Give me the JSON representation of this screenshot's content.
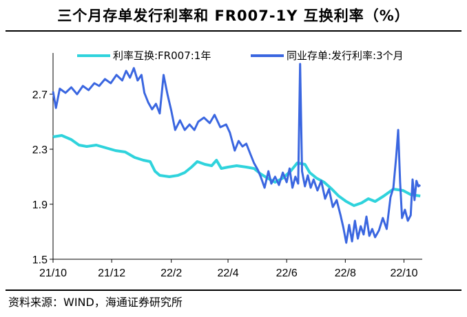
{
  "title": "三个月存单发行利率和 FR007-1Y 互换利率（%）",
  "source": "资料来源：WIND，海通证券研究所",
  "chart_data": {
    "type": "line",
    "title": "三个月存单发行利率和 FR007-1Y 互换利率（%）",
    "x_tick_labels": [
      "21/10",
      "21/12",
      "22/2",
      "22/4",
      "22/6",
      "22/8",
      "22/10"
    ],
    "y_tick_labels": [
      "1.5",
      "1.9",
      "2.3",
      "2.7"
    ],
    "ylim": [
      1.5,
      3.0
    ],
    "xlim": [
      "2021-10-01",
      "2022-10-20"
    ],
    "grid": false,
    "legend_position": "top",
    "series": [
      {
        "name": "利率互换:FR007:1年",
        "color": "#2fd3dc",
        "points": [
          [
            "2021-10-01",
            2.39
          ],
          [
            "2021-10-10",
            2.4
          ],
          [
            "2021-10-20",
            2.37
          ],
          [
            "2021-10-28",
            2.33
          ],
          [
            "2021-11-05",
            2.32
          ],
          [
            "2021-11-15",
            2.33
          ],
          [
            "2021-11-25",
            2.31
          ],
          [
            "2021-12-05",
            2.29
          ],
          [
            "2021-12-15",
            2.28
          ],
          [
            "2021-12-25",
            2.24
          ],
          [
            "2022-01-03",
            2.22
          ],
          [
            "2022-01-10",
            2.21
          ],
          [
            "2022-01-15",
            2.14
          ],
          [
            "2022-01-20",
            2.11
          ],
          [
            "2022-01-30",
            2.1
          ],
          [
            "2022-02-08",
            2.11
          ],
          [
            "2022-02-15",
            2.13
          ],
          [
            "2022-02-22",
            2.17
          ],
          [
            "2022-02-28",
            2.21
          ],
          [
            "2022-03-08",
            2.19
          ],
          [
            "2022-03-15",
            2.18
          ],
          [
            "2022-03-20",
            2.22
          ],
          [
            "2022-03-25",
            2.16
          ],
          [
            "2022-04-01",
            2.17
          ],
          [
            "2022-04-10",
            2.18
          ],
          [
            "2022-04-20",
            2.17
          ],
          [
            "2022-04-28",
            2.16
          ],
          [
            "2022-05-05",
            2.12
          ],
          [
            "2022-05-12",
            2.09
          ],
          [
            "2022-05-20",
            2.06
          ],
          [
            "2022-05-28",
            2.09
          ],
          [
            "2022-06-05",
            2.14
          ],
          [
            "2022-06-12",
            2.2
          ],
          [
            "2022-06-20",
            2.19
          ],
          [
            "2022-06-25",
            2.13
          ],
          [
            "2022-07-02",
            2.09
          ],
          [
            "2022-07-10",
            2.06
          ],
          [
            "2022-07-18",
            2.01
          ],
          [
            "2022-07-25",
            1.96
          ],
          [
            "2022-08-02",
            1.92
          ],
          [
            "2022-08-10",
            1.89
          ],
          [
            "2022-08-18",
            1.91
          ],
          [
            "2022-08-25",
            1.94
          ],
          [
            "2022-09-01",
            1.92
          ],
          [
            "2022-09-10",
            1.96
          ],
          [
            "2022-09-20",
            2.01
          ],
          [
            "2022-09-30",
            2.0
          ],
          [
            "2022-10-08",
            1.97
          ],
          [
            "2022-10-18",
            1.96
          ]
        ]
      },
      {
        "name": "同业存单:发行利率:3个月",
        "color": "#3a66e0",
        "points": [
          [
            "2021-10-01",
            2.72
          ],
          [
            "2021-10-04",
            2.6
          ],
          [
            "2021-10-08",
            2.74
          ],
          [
            "2021-10-14",
            2.71
          ],
          [
            "2021-10-20",
            2.75
          ],
          [
            "2021-10-26",
            2.7
          ],
          [
            "2021-11-01",
            2.76
          ],
          [
            "2021-11-07",
            2.73
          ],
          [
            "2021-11-13",
            2.78
          ],
          [
            "2021-11-18",
            2.76
          ],
          [
            "2021-11-24",
            2.81
          ],
          [
            "2021-11-30",
            2.78
          ],
          [
            "2021-12-06",
            2.84
          ],
          [
            "2021-12-12",
            2.8
          ],
          [
            "2021-12-16",
            2.87
          ],
          [
            "2021-12-20",
            2.82
          ],
          [
            "2021-12-24",
            2.89
          ],
          [
            "2021-12-28",
            2.8
          ],
          [
            "2022-01-01",
            2.84
          ],
          [
            "2022-01-04",
            2.71
          ],
          [
            "2022-01-08",
            2.64
          ],
          [
            "2022-01-12",
            2.59
          ],
          [
            "2022-01-16",
            2.63
          ],
          [
            "2022-01-20",
            2.56
          ],
          [
            "2022-01-24",
            2.84
          ],
          [
            "2022-01-28",
            2.7
          ],
          [
            "2022-02-01",
            2.58
          ],
          [
            "2022-02-05",
            2.44
          ],
          [
            "2022-02-10",
            2.51
          ],
          [
            "2022-02-15",
            2.44
          ],
          [
            "2022-02-20",
            2.48
          ],
          [
            "2022-02-25",
            2.44
          ],
          [
            "2022-03-01",
            2.5
          ],
          [
            "2022-03-07",
            2.53
          ],
          [
            "2022-03-13",
            2.49
          ],
          [
            "2022-03-18",
            2.55
          ],
          [
            "2022-03-24",
            2.46
          ],
          [
            "2022-03-30",
            2.48
          ],
          [
            "2022-04-03",
            2.42
          ],
          [
            "2022-04-08",
            2.29
          ],
          [
            "2022-04-12",
            2.36
          ],
          [
            "2022-04-16",
            2.32
          ],
          [
            "2022-04-20",
            2.34
          ],
          [
            "2022-04-24",
            2.27
          ],
          [
            "2022-04-28",
            2.2
          ],
          [
            "2022-05-02",
            2.15
          ],
          [
            "2022-05-05",
            2.1
          ],
          [
            "2022-05-09",
            2.02
          ],
          [
            "2022-05-13",
            2.14
          ],
          [
            "2022-05-16",
            2.05
          ],
          [
            "2022-05-20",
            2.1
          ],
          [
            "2022-05-24",
            2.04
          ],
          [
            "2022-05-28",
            2.13
          ],
          [
            "2022-06-01",
            2.06
          ],
          [
            "2022-06-04",
            2.16
          ],
          [
            "2022-06-07",
            2.02
          ],
          [
            "2022-06-10",
            2.1
          ],
          [
            "2022-06-13",
            2.05
          ],
          [
            "2022-06-15",
            2.92
          ],
          [
            "2022-06-17",
            2.14
          ],
          [
            "2022-06-20",
            2.03
          ],
          [
            "2022-06-23",
            2.11
          ],
          [
            "2022-06-26",
            2.02
          ],
          [
            "2022-06-29",
            2.08
          ],
          [
            "2022-07-03",
            2.0
          ],
          [
            "2022-07-07",
            2.07
          ],
          [
            "2022-07-11",
            1.94
          ],
          [
            "2022-07-15",
            2.01
          ],
          [
            "2022-07-19",
            1.88
          ],
          [
            "2022-07-23",
            1.93
          ],
          [
            "2022-07-27",
            1.82
          ],
          [
            "2022-07-30",
            1.73
          ],
          [
            "2022-08-02",
            1.62
          ],
          [
            "2022-08-05",
            1.75
          ],
          [
            "2022-08-08",
            1.63
          ],
          [
            "2022-08-11",
            1.78
          ],
          [
            "2022-08-14",
            1.65
          ],
          [
            "2022-08-17",
            1.74
          ],
          [
            "2022-08-20",
            1.68
          ],
          [
            "2022-08-23",
            1.81
          ],
          [
            "2022-08-26",
            1.67
          ],
          [
            "2022-08-29",
            1.72
          ],
          [
            "2022-09-01",
            1.66
          ],
          [
            "2022-09-05",
            1.71
          ],
          [
            "2022-09-09",
            1.8
          ],
          [
            "2022-09-13",
            1.72
          ],
          [
            "2022-09-17",
            1.95
          ],
          [
            "2022-09-20",
            2.02
          ],
          [
            "2022-09-23",
            2.25
          ],
          [
            "2022-09-25",
            2.44
          ],
          [
            "2022-09-27",
            2.06
          ],
          [
            "2022-09-29",
            1.8
          ],
          [
            "2022-10-02",
            1.86
          ],
          [
            "2022-10-05",
            1.78
          ],
          [
            "2022-10-08",
            1.82
          ],
          [
            "2022-10-10",
            2.08
          ],
          [
            "2022-10-12",
            1.93
          ],
          [
            "2022-10-14",
            2.07
          ],
          [
            "2022-10-16",
            2.03
          ],
          [
            "2022-10-18",
            2.04
          ]
        ]
      }
    ]
  }
}
